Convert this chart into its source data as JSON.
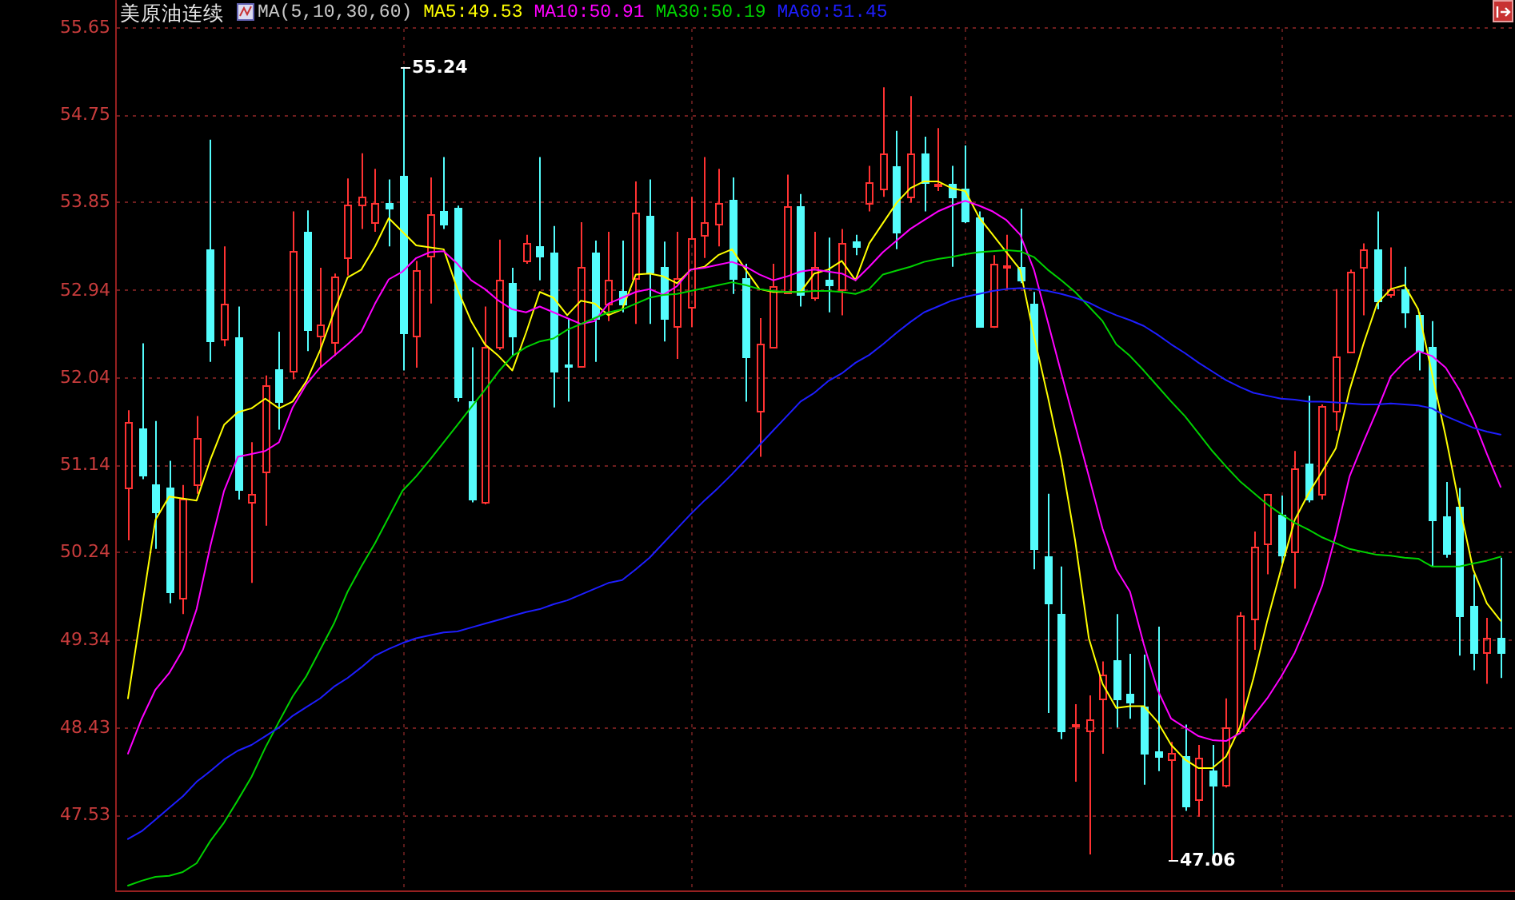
{
  "chart_data": {
    "type": "candlestick",
    "title": "美原油连续",
    "legend_title": "MA(5,10,30,60)",
    "legend": "top left",
    "grid": true,
    "tick_labels": "y",
    "categories": [
      null,
      null,
      null,
      null,
      null,
      null,
      null,
      null,
      null,
      null,
      null,
      null,
      null,
      null,
      null,
      null,
      null,
      null,
      null,
      null,
      null,
      null,
      null,
      null,
      null,
      null,
      null,
      null,
      null,
      null,
      null,
      null,
      null,
      null,
      null,
      null,
      null,
      null,
      null,
      null,
      null,
      null,
      null,
      null,
      null,
      null,
      null,
      null,
      null,
      null,
      null,
      null,
      null,
      null,
      null,
      null,
      null,
      null,
      null,
      null,
      null,
      null,
      null,
      null,
      null,
      null,
      null,
      null,
      null,
      null,
      null,
      null,
      null,
      null,
      null,
      null,
      null,
      null,
      null,
      null,
      null,
      null,
      null,
      null,
      null,
      null,
      null,
      null,
      null,
      null,
      null,
      null,
      null,
      null,
      null,
      null,
      null,
      null,
      null,
      null,
      null
    ],
    "ohlc": [
      [
        50.9,
        51.7,
        50.36,
        51.58
      ],
      [
        51.52,
        52.39,
        50.99,
        51.04
      ],
      [
        50.94,
        51.59,
        50.27,
        50.65
      ],
      [
        50.9,
        51.18,
        49.71,
        49.84
      ],
      [
        49.77,
        50.93,
        49.6,
        50.78
      ],
      [
        50.93,
        51.64,
        50.84,
        51.41
      ],
      [
        53.36,
        54.49,
        52.2,
        52.42
      ],
      [
        52.43,
        53.39,
        52.36,
        52.8
      ],
      [
        52.45,
        52.77,
        50.78,
        50.88
      ],
      [
        50.75,
        51.37,
        49.92,
        50.83
      ],
      [
        51.07,
        52.06,
        50.51,
        51.95
      ],
      [
        52.13,
        52.51,
        51.5,
        51.79
      ],
      [
        52.1,
        53.75,
        52.02,
        53.34
      ],
      [
        53.54,
        53.76,
        52.31,
        52.53
      ],
      [
        52.47,
        53.17,
        52.14,
        52.59
      ],
      [
        52.4,
        53.11,
        52.26,
        53.08
      ],
      [
        53.27,
        54.09,
        53.09,
        53.82
      ],
      [
        53.82,
        54.35,
        53.57,
        53.9
      ],
      [
        53.64,
        54.19,
        53.54,
        53.84
      ],
      [
        53.84,
        54.08,
        53.39,
        53.78
      ],
      [
        54.12,
        55.24,
        52.11,
        52.5
      ],
      [
        52.47,
        53.24,
        52.14,
        53.15
      ],
      [
        53.3,
        54.1,
        52.8,
        53.72
      ],
      [
        53.75,
        54.31,
        53.57,
        53.63
      ],
      [
        53.78,
        53.81,
        51.79,
        51.85
      ],
      [
        51.79,
        52.35,
        50.75,
        50.78
      ],
      [
        50.75,
        52.77,
        50.73,
        52.35
      ],
      [
        52.35,
        53.46,
        52.32,
        53.04
      ],
      [
        53.02,
        53.17,
        52.26,
        52.47
      ],
      [
        53.24,
        53.51,
        53.21,
        53.42
      ],
      [
        53.4,
        54.31,
        53.04,
        53.3
      ],
      [
        53.33,
        53.6,
        51.73,
        52.11
      ],
      [
        52.17,
        52.65,
        51.79,
        52.16
      ],
      [
        52.16,
        53.64,
        52.14,
        53.18
      ],
      [
        53.33,
        53.45,
        52.2,
        52.65
      ],
      [
        52.8,
        53.54,
        52.62,
        53.04
      ],
      [
        52.93,
        53.45,
        52.71,
        52.8
      ],
      [
        53.07,
        54.06,
        52.59,
        53.74
      ],
      [
        53.7,
        54.08,
        52.59,
        53.13
      ],
      [
        53.17,
        53.44,
        52.41,
        52.65
      ],
      [
        52.56,
        53.54,
        52.23,
        53.07
      ],
      [
        52.77,
        53.9,
        52.56,
        53.48
      ],
      [
        53.51,
        54.31,
        53.27,
        53.64
      ],
      [
        53.63,
        54.19,
        53.39,
        53.84
      ],
      [
        53.87,
        54.1,
        52.9,
        53.07
      ],
      [
        53.07,
        53.21,
        51.79,
        52.26
      ],
      [
        51.7,
        52.65,
        51.22,
        52.39
      ],
      [
        52.35,
        53.21,
        52.35,
        52.98
      ],
      [
        52.92,
        54.13,
        52.9,
        53.8
      ],
      [
        53.8,
        53.93,
        52.77,
        52.89
      ],
      [
        52.86,
        53.54,
        52.83,
        53.18
      ],
      [
        53.04,
        53.48,
        52.71,
        52.99
      ],
      [
        52.95,
        53.57,
        52.68,
        53.42
      ],
      [
        53.44,
        53.51,
        53.3,
        53.39
      ],
      [
        53.84,
        54.22,
        53.75,
        54.05
      ],
      [
        53.99,
        55.03,
        53.9,
        54.34
      ],
      [
        54.21,
        54.58,
        53.36,
        53.54
      ],
      [
        53.9,
        54.94,
        53.84,
        54.34
      ],
      [
        54.34,
        54.52,
        53.75,
        54.05
      ],
      [
        54.01,
        54.61,
        53.96,
        54.03
      ],
      [
        54.03,
        54.22,
        53.18,
        53.9
      ],
      [
        53.99,
        54.43,
        53.63,
        53.66
      ],
      [
        53.69,
        53.75,
        52.56,
        52.56
      ],
      [
        52.56,
        53.3,
        52.55,
        53.21
      ],
      [
        53.18,
        53.51,
        52.95,
        53.2
      ],
      [
        53.17,
        53.78,
        53.01,
        53.04
      ],
      [
        52.8,
        52.92,
        50.06,
        50.27
      ],
      [
        50.2,
        50.84,
        48.58,
        49.71
      ],
      [
        49.6,
        50.09,
        48.31,
        48.4
      ],
      [
        48.44,
        48.67,
        47.87,
        48.46
      ],
      [
        48.4,
        48.76,
        47.12,
        48.52
      ],
      [
        48.73,
        49.11,
        48.16,
        48.97
      ],
      [
        49.13,
        49.6,
        48.43,
        48.73
      ],
      [
        48.77,
        49.19,
        48.52,
        48.69
      ],
      [
        48.64,
        49.18,
        47.84,
        48.16
      ],
      [
        48.19,
        49.47,
        47.98,
        48.13
      ],
      [
        48.1,
        48.28,
        47.06,
        48.16
      ],
      [
        48.13,
        48.46,
        47.57,
        47.63
      ],
      [
        47.69,
        48.25,
        47.51,
        48.12
      ],
      [
        47.98,
        48.25,
        47.1,
        47.84
      ],
      [
        47.84,
        48.73,
        47.81,
        48.43
      ],
      [
        48.4,
        49.62,
        48.37,
        49.59
      ],
      [
        49.56,
        50.45,
        49.23,
        50.3
      ],
      [
        50.33,
        50.84,
        50.01,
        50.84
      ],
      [
        50.63,
        50.82,
        50.12,
        50.21
      ],
      [
        50.24,
        51.28,
        49.86,
        51.1
      ],
      [
        51.15,
        51.85,
        50.75,
        50.79
      ],
      [
        50.84,
        51.76,
        50.78,
        51.74
      ],
      [
        51.7,
        52.95,
        51.49,
        52.26
      ],
      [
        52.31,
        53.15,
        52.29,
        53.12
      ],
      [
        53.17,
        53.42,
        52.68,
        53.36
      ],
      [
        53.36,
        53.75,
        52.74,
        52.83
      ],
      [
        52.9,
        53.38,
        52.86,
        52.95
      ],
      [
        52.95,
        53.18,
        52.55,
        52.72
      ],
      [
        52.69,
        52.71,
        52.11,
        52.32
      ],
      [
        52.35,
        52.62,
        50.09,
        50.57
      ],
      [
        50.6,
        50.96,
        50.18,
        50.23
      ],
      [
        50.71,
        50.9,
        49.17,
        49.59
      ],
      [
        49.68,
        50.01,
        49.02,
        49.2
      ],
      [
        49.2,
        49.56,
        48.88,
        49.35
      ],
      [
        49.35,
        50.18,
        48.94,
        49.2
      ]
    ],
    "colors": [
      "#ff3232",
      "#54fcfc",
      "#54fcfc",
      "#54fcfc",
      "#ff3232",
      "#ff3232",
      "#54fcfc",
      "#ff3232",
      "#54fcfc",
      "#ff3232",
      "#ff3232",
      "#54fcfc",
      "#ff3232",
      "#54fcfc",
      "#ff3232",
      "#ff3232",
      "#ff3232",
      "#ff3232",
      "#ff3232",
      "#54fcfc",
      "#54fcfc",
      "#ff3232",
      "#ff3232",
      "#54fcfc",
      "#54fcfc",
      "#54fcfc",
      "#ff3232",
      "#ff3232",
      "#54fcfc",
      "#ff3232",
      "#54fcfc",
      "#54fcfc",
      "#54fcfc",
      "#ff3232",
      "#54fcfc",
      "#ff3232",
      "#54fcfc",
      "#ff3232",
      "#54fcfc",
      "#54fcfc",
      "#ff3232",
      "#ff3232",
      "#ff3232",
      "#ff3232",
      "#54fcfc",
      "#54fcfc",
      "#ff3232",
      "#ff3232",
      "#ff3232",
      "#54fcfc",
      "#ff3232",
      "#54fcfc",
      "#ff3232",
      "#54fcfc",
      "#ff3232",
      "#ff3232",
      "#54fcfc",
      "#ff3232",
      "#54fcfc",
      "#ff3232",
      "#54fcfc",
      "#54fcfc",
      "#54fcfc",
      "#ff3232",
      "#ff3232",
      "#54fcfc",
      "#54fcfc",
      "#54fcfc",
      "#54fcfc",
      "#ff3232",
      "#ff3232",
      "#ff3232",
      "#54fcfc",
      "#54fcfc",
      "#54fcfc",
      "#54fcfc",
      "#ff3232",
      "#54fcfc",
      "#ff3232",
      "#54fcfc",
      "#ff3232",
      "#ff3232",
      "#ff3232",
      "#ff3232",
      "#54fcfc",
      "#ff3232",
      "#54fcfc",
      "#ff3232",
      "#ff3232",
      "#ff3232",
      "#ff3232",
      "#54fcfc",
      "#ff3232",
      "#54fcfc",
      "#54fcfc",
      "#54fcfc",
      "#54fcfc",
      "#54fcfc",
      "#54fcfc",
      "#ff3232",
      "#54fcfc"
    ],
    "series": [
      {
        "type": "line",
        "name": "MA5:49.53",
        "color": "#ffff00",
        "values": [
          48.73,
          49.65,
          50.57,
          50.81,
          50.79,
          50.77,
          51.19,
          51.55,
          51.68,
          51.72,
          51.82,
          51.72,
          51.79,
          52.0,
          52.32,
          52.71,
          53.07,
          53.15,
          53.39,
          53.68,
          53.54,
          53.4,
          53.38,
          53.36,
          52.95,
          52.62,
          52.38,
          52.26,
          52.11,
          52.5,
          52.92,
          52.86,
          52.68,
          52.83,
          52.8,
          52.68,
          52.74,
          53.1,
          53.11,
          53.08,
          53.01,
          53.15,
          53.18,
          53.3,
          53.36,
          53.15,
          52.95,
          52.92,
          52.92,
          52.92,
          53.11,
          53.15,
          53.24,
          53.04,
          53.42,
          53.63,
          53.84,
          53.99,
          54.06,
          54.06,
          53.99,
          53.96,
          53.69,
          53.51,
          53.33,
          53.15,
          52.47,
          51.85,
          51.19,
          50.36,
          49.35,
          48.88,
          48.63,
          48.65,
          48.65,
          48.49,
          48.25,
          48.1,
          48.01,
          48.01,
          48.13,
          48.43,
          48.94,
          49.53,
          50.06,
          50.57,
          50.84,
          51.07,
          51.31,
          51.91,
          52.38,
          52.8,
          52.95,
          52.99,
          52.74,
          52.08,
          51.43,
          50.72,
          50.06,
          49.71,
          49.53
        ]
      },
      {
        "type": "line",
        "name": "MA10:50.91",
        "color": "#ff00ff",
        "values": [
          48.16,
          48.52,
          48.82,
          48.99,
          49.23,
          49.65,
          50.3,
          50.87,
          51.22,
          51.25,
          51.28,
          51.37,
          51.73,
          51.97,
          52.14,
          52.26,
          52.38,
          52.51,
          52.8,
          53.05,
          53.13,
          53.27,
          53.33,
          53.34,
          53.21,
          53.04,
          52.95,
          52.83,
          52.74,
          52.71,
          52.77,
          52.71,
          52.65,
          52.59,
          52.62,
          52.8,
          52.86,
          52.92,
          52.95,
          52.89,
          52.98,
          53.15,
          53.17,
          53.2,
          53.23,
          53.18,
          53.1,
          53.04,
          53.08,
          53.13,
          53.15,
          53.13,
          53.11,
          53.04,
          53.18,
          53.33,
          53.45,
          53.57,
          53.66,
          53.75,
          53.81,
          53.86,
          53.81,
          53.75,
          53.66,
          53.51,
          53.15,
          52.62,
          52.08,
          51.55,
          51.02,
          50.48,
          50.06,
          49.83,
          49.29,
          48.82,
          48.52,
          48.43,
          48.34,
          48.3,
          48.29,
          48.37,
          48.55,
          48.73,
          48.95,
          49.2,
          49.53,
          49.89,
          50.42,
          51.02,
          51.37,
          51.7,
          52.05,
          52.2,
          52.31,
          52.26,
          52.14,
          51.91,
          51.61,
          51.25,
          50.91
        ]
      },
      {
        "type": "line",
        "name": "MA30:50.19",
        "color": "#00d200",
        "values": [
          46.8,
          46.85,
          46.89,
          46.9,
          46.94,
          47.03,
          47.26,
          47.45,
          47.68,
          47.92,
          48.22,
          48.49,
          48.75,
          48.96,
          49.23,
          49.5,
          49.83,
          50.09,
          50.33,
          50.6,
          50.87,
          51.02,
          51.19,
          51.37,
          51.55,
          51.73,
          51.91,
          52.1,
          52.26,
          52.35,
          52.41,
          52.44,
          52.53,
          52.59,
          52.65,
          52.71,
          52.74,
          52.8,
          52.86,
          52.89,
          52.9,
          52.93,
          52.96,
          52.99,
          53.02,
          52.99,
          52.95,
          52.93,
          52.92,
          52.92,
          52.93,
          52.93,
          52.92,
          52.9,
          52.95,
          53.1,
          53.14,
          53.18,
          53.23,
          53.26,
          53.28,
          53.31,
          53.33,
          53.34,
          53.35,
          53.34,
          53.28,
          53.15,
          53.04,
          52.92,
          52.77,
          52.62,
          52.38,
          52.26,
          52.11,
          51.95,
          51.79,
          51.64,
          51.46,
          51.28,
          51.12,
          50.97,
          50.85,
          50.73,
          50.63,
          50.54,
          50.47,
          50.39,
          50.33,
          50.27,
          50.24,
          50.21,
          50.2,
          50.18,
          50.17,
          50.09,
          50.09,
          50.09,
          50.12,
          50.15,
          50.19
        ]
      },
      {
        "type": "line",
        "name": "MA60:51.45",
        "color": "#1e1eff",
        "values": [
          47.28,
          47.36,
          47.48,
          47.6,
          47.72,
          47.87,
          47.98,
          48.1,
          48.19,
          48.25,
          48.34,
          48.43,
          48.55,
          48.64,
          48.73,
          48.85,
          48.94,
          49.05,
          49.17,
          49.24,
          49.3,
          49.35,
          49.38,
          49.41,
          49.42,
          49.46,
          49.5,
          49.54,
          49.58,
          49.62,
          49.65,
          49.7,
          49.74,
          49.8,
          49.86,
          49.92,
          49.95,
          50.06,
          50.18,
          50.33,
          50.48,
          50.63,
          50.77,
          50.9,
          51.04,
          51.19,
          51.34,
          51.49,
          51.64,
          51.79,
          51.88,
          52.0,
          52.08,
          52.19,
          52.27,
          52.38,
          52.5,
          52.61,
          52.71,
          52.77,
          52.83,
          52.87,
          52.9,
          52.93,
          52.95,
          52.96,
          52.95,
          52.93,
          52.9,
          52.86,
          52.81,
          52.74,
          52.68,
          52.63,
          52.57,
          52.48,
          52.38,
          52.29,
          52.19,
          52.1,
          52.01,
          51.94,
          51.88,
          51.85,
          51.82,
          51.81,
          51.79,
          51.79,
          51.78,
          51.77,
          51.76,
          51.76,
          51.77,
          51.76,
          51.75,
          51.72,
          51.64,
          51.58,
          51.52,
          51.48,
          51.45
        ]
      }
    ],
    "ylim": [
      46.75,
      55.93
    ],
    "yticks": [
      47.53,
      48.43,
      49.34,
      50.24,
      51.14,
      52.04,
      52.94,
      53.85,
      54.75,
      55.65
    ],
    "annotations": [
      "55.24",
      "47.06"
    ]
  }
}
